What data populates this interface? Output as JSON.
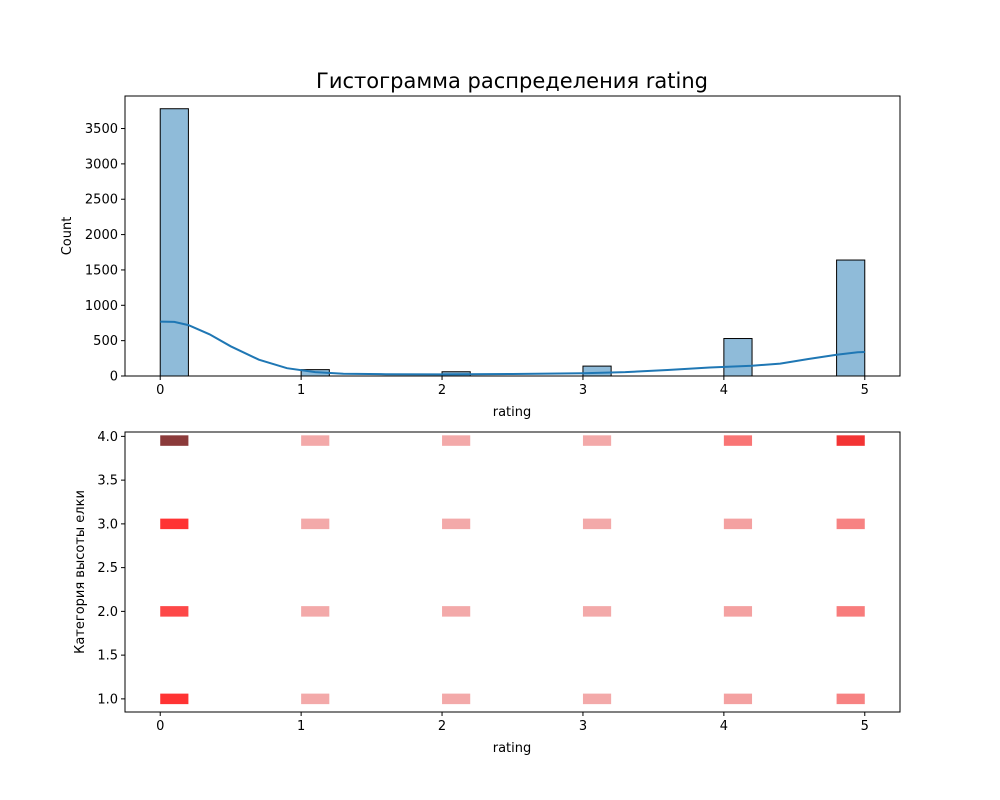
{
  "chart_data": [
    {
      "type": "histogram",
      "title": "Гистограмма распределения rating",
      "xlabel": "rating",
      "ylabel": "Count",
      "xlim": [
        -0.25,
        5.25
      ],
      "ylim": [
        0,
        3960
      ],
      "xticks": [
        0,
        1,
        2,
        3,
        4,
        5
      ],
      "yticks": [
        0,
        500,
        1000,
        1500,
        2000,
        2500,
        3000,
        3500
      ],
      "grid": false,
      "bar_color": "#8fbbd9",
      "edge_color": "#000000",
      "bins": [
        {
          "x0": 0.0,
          "x1": 0.2,
          "count": 3780
        },
        {
          "x0": 1.0,
          "x1": 1.2,
          "count": 90
        },
        {
          "x0": 2.0,
          "x1": 2.2,
          "count": 60
        },
        {
          "x0": 3.0,
          "x1": 3.2,
          "count": 140
        },
        {
          "x0": 4.0,
          "x1": 4.2,
          "count": 530
        },
        {
          "x0": 4.8,
          "x1": 5.0,
          "count": 1640
        }
      ],
      "kde": {
        "color": "#1f77b4",
        "points": [
          [
            0.0,
            770
          ],
          [
            0.1,
            765
          ],
          [
            0.2,
            720
          ],
          [
            0.35,
            590
          ],
          [
            0.5,
            420
          ],
          [
            0.7,
            230
          ],
          [
            0.9,
            110
          ],
          [
            1.1,
            55
          ],
          [
            1.3,
            33
          ],
          [
            1.6,
            25
          ],
          [
            2.0,
            22
          ],
          [
            2.5,
            28
          ],
          [
            3.0,
            40
          ],
          [
            3.3,
            55
          ],
          [
            3.6,
            85
          ],
          [
            3.9,
            120
          ],
          [
            4.2,
            145
          ],
          [
            4.4,
            175
          ],
          [
            4.6,
            240
          ],
          [
            4.8,
            300
          ],
          [
            4.95,
            335
          ],
          [
            5.0,
            340
          ]
        ]
      }
    },
    {
      "type": "heatmap",
      "xlabel": "rating",
      "ylabel": "Категория высоты елки",
      "xlim": [
        -0.25,
        5.25
      ],
      "ylim": [
        0.85,
        4.05
      ],
      "xticks": [
        0,
        1,
        2,
        3,
        4,
        5
      ],
      "yticks": [
        1.0,
        1.5,
        2.0,
        2.5,
        3.0,
        3.5,
        4.0
      ],
      "cmap": {
        "low": "#f2b6b6",
        "mid": "#ff3333",
        "high": "#8b3a3a"
      },
      "cells": [
        {
          "x": 0,
          "y": 4,
          "level": 1.0
        },
        {
          "x": 1,
          "y": 4,
          "level": 0.05
        },
        {
          "x": 2,
          "y": 4,
          "level": 0.05
        },
        {
          "x": 3,
          "y": 4,
          "level": 0.05
        },
        {
          "x": 4,
          "y": 4,
          "level": 0.25
        },
        {
          "x": 5,
          "y": 4,
          "level": 0.55
        },
        {
          "x": 0,
          "y": 3,
          "level": 0.5
        },
        {
          "x": 1,
          "y": 3,
          "level": 0.05
        },
        {
          "x": 2,
          "y": 3,
          "level": 0.05
        },
        {
          "x": 3,
          "y": 3,
          "level": 0.05
        },
        {
          "x": 4,
          "y": 3,
          "level": 0.08
        },
        {
          "x": 5,
          "y": 3,
          "level": 0.2
        },
        {
          "x": 0,
          "y": 2,
          "level": 0.42
        },
        {
          "x": 1,
          "y": 2,
          "level": 0.05
        },
        {
          "x": 2,
          "y": 2,
          "level": 0.05
        },
        {
          "x": 3,
          "y": 2,
          "level": 0.05
        },
        {
          "x": 4,
          "y": 2,
          "level": 0.08
        },
        {
          "x": 5,
          "y": 2,
          "level": 0.22
        },
        {
          "x": 0,
          "y": 1,
          "level": 0.5
        },
        {
          "x": 1,
          "y": 1,
          "level": 0.05
        },
        {
          "x": 2,
          "y": 1,
          "level": 0.05
        },
        {
          "x": 3,
          "y": 1,
          "level": 0.05
        },
        {
          "x": 4,
          "y": 1,
          "level": 0.08
        },
        {
          "x": 5,
          "y": 1,
          "level": 0.2
        }
      ]
    }
  ]
}
